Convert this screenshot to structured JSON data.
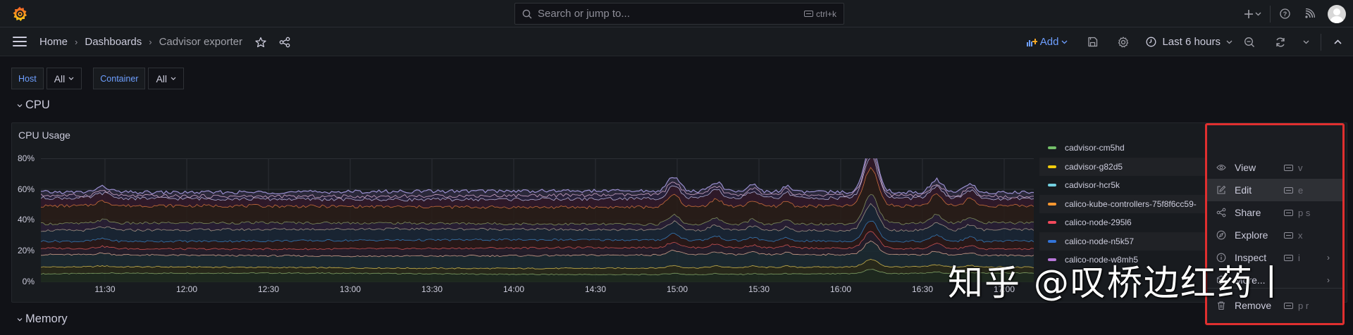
{
  "topbar": {
    "logo": "grafana-logo",
    "search_placeholder": "Search or jump to...",
    "search_shortcut": "ctrl+k",
    "icons": [
      "plus-icon",
      "chevron-down-icon",
      "help-icon",
      "news-rss-icon",
      "user-avatar"
    ]
  },
  "navbar": {
    "breadcrumbs": [
      "Home",
      "Dashboards",
      "Cadvisor exporter"
    ],
    "add_label": "Add",
    "time_range": "Last 6 hours",
    "icons": [
      "star-icon",
      "share-icon",
      "save-icon",
      "gear-icon",
      "zoom-out-icon",
      "refresh-icon",
      "collapse-icon"
    ]
  },
  "variables": [
    {
      "label": "Host",
      "value": "All"
    },
    {
      "label": "Container",
      "value": "All"
    }
  ],
  "rows": {
    "cpu": "CPU",
    "memory": "Memory"
  },
  "panel": {
    "title": "CPU Usage"
  },
  "chart_data": {
    "type": "area",
    "title": "CPU Usage",
    "xlabel": "",
    "ylabel": "",
    "ylim": [
      0,
      80
    ],
    "yticks": [
      "0%",
      "20%",
      "40%",
      "60%",
      "80%"
    ],
    "x": [
      "11:30",
      "12:00",
      "12:30",
      "13:00",
      "13:30",
      "14:00",
      "14:30",
      "15:00",
      "15:30",
      "16:00",
      "16:30",
      "17:00"
    ],
    "grid": true,
    "stacked": true,
    "legend_position": "right",
    "series_top_envelope_approx": {
      "11:15": 59,
      "11:30": 58,
      "11:45": 60,
      "12:00": 57,
      "12:30": 56,
      "13:00": 57,
      "13:30": 55,
      "14:00": 57,
      "14:30": 56,
      "15:00": 63,
      "15:15": 60,
      "15:30": 60,
      "16:00": 56,
      "16:10": 78,
      "16:30": 62,
      "17:00": 59
    },
    "series": [
      {
        "name": "cadvisor-cm5hd",
        "color": "#73bf69",
        "approx_level": 6
      },
      {
        "name": "cadvisor-g82d5",
        "color": "#f2cc0c",
        "approx_level": 9
      },
      {
        "name": "cadvisor-hcr5k",
        "color": "#8ab8ff",
        "approx_level": 17
      },
      {
        "name": "calico-kube-controllers-75f8f6cc59-",
        "color": "#ff9830",
        "approx_level": 22
      },
      {
        "name": "calico-node-295l6",
        "color": "#f2495c",
        "approx_level": 27
      },
      {
        "name": "calico-node-n5k57",
        "color": "#5794f2",
        "approx_level": 35
      },
      {
        "name": "calico-node-w8mh5",
        "color": "#b877d9",
        "approx_level": 38
      }
    ],
    "line_colors_top_to_bottom": [
      "#9a8fcf",
      "#e6b8d8",
      "#c4c4e8",
      "#e07b3e",
      "#8aa068",
      "#b0a48e",
      "#3a86c8",
      "#e05a5a",
      "#e8b49a",
      "#e6c84e",
      "#8bb070"
    ]
  },
  "legend": [
    {
      "name": "cadvisor-cm5hd",
      "color": "#73bf69"
    },
    {
      "name": "cadvisor-g82d5",
      "color": "#f2cc0c"
    },
    {
      "name": "cadvisor-hcr5k",
      "color": "#73d0e0"
    },
    {
      "name": "calico-kube-controllers-75f8f6cc59-",
      "color": "#ff9830"
    },
    {
      "name": "calico-node-295l6",
      "color": "#f2495c"
    },
    {
      "name": "calico-node-n5k57",
      "color": "#3274d9"
    },
    {
      "name": "calico-node-w8mh5",
      "color": "#b877d9"
    }
  ],
  "context_menu": {
    "items": [
      {
        "label": "View",
        "shortcut": "v",
        "icon": "eye-icon"
      },
      {
        "label": "Edit",
        "shortcut": "e",
        "icon": "edit-icon",
        "active": true
      },
      {
        "label": "Share",
        "shortcut": "p s",
        "icon": "share-icon"
      },
      {
        "label": "Explore",
        "shortcut": "x",
        "icon": "compass-icon"
      },
      {
        "label": "Inspect",
        "shortcut": "i",
        "icon": "info-icon",
        "submenu": true
      },
      {
        "label": "More...",
        "shortcut": "",
        "icon": "cube-icon",
        "submenu": true
      },
      {
        "label": "Remove",
        "shortcut": "p r",
        "icon": "trash-icon"
      }
    ]
  },
  "watermark": "知乎 @叹桥边红药丨",
  "colors": {
    "background": "#111217",
    "panel": "#181b1f",
    "accent": "#6e9fff",
    "highlight_outline": "#e02f2f"
  }
}
